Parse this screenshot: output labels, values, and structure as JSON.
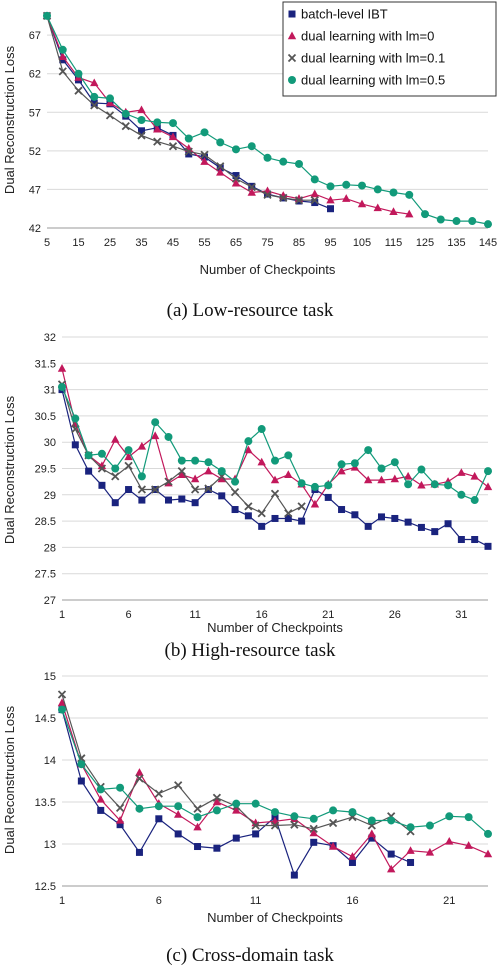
{
  "colors": {
    "batch": "#1a237e",
    "lm0": "#c2185b",
    "lm01": "#555555",
    "lm05": "#129a7a"
  },
  "chart_data": [
    {
      "type": "line",
      "caption": "(a) Low-resource task",
      "xlabel": "Number of Checkpoints",
      "ylabel": "Dual Reconstruction  Loss",
      "ylim": [
        42,
        70
      ],
      "yticks": [
        42,
        47,
        52,
        57,
        62,
        67
      ],
      "xlim": [
        5,
        145
      ],
      "xticks": [
        5,
        15,
        25,
        35,
        45,
        55,
        65,
        75,
        85,
        95,
        105,
        115,
        125,
        135,
        145
      ],
      "grid": true,
      "legend": "top-right",
      "series": [
        {
          "name": "batch-level IBT",
          "marker": "square",
          "colorKey": "batch",
          "x": [
            5,
            10,
            15,
            20,
            25,
            30,
            35,
            40,
            45,
            50,
            55,
            60,
            65,
            70,
            75,
            80,
            85,
            90,
            95
          ],
          "y": [
            69.5,
            63.8,
            61.2,
            58.2,
            58.1,
            56.5,
            54.6,
            55.0,
            54.0,
            51.6,
            51.2,
            49.8,
            48.8,
            47.4,
            46.4,
            45.9,
            45.5,
            45.3,
            44.5
          ]
        },
        {
          "name": "dual learning with lm=0",
          "marker": "triangle",
          "colorKey": "lm0",
          "x": [
            5,
            10,
            15,
            20,
            25,
            30,
            35,
            40,
            45,
            50,
            55,
            60,
            65,
            70,
            75,
            80,
            85,
            90,
            95,
            100,
            105,
            110,
            115,
            120
          ],
          "y": [
            69.5,
            64.2,
            61.5,
            60.8,
            58.2,
            57.0,
            57.3,
            54.8,
            53.8,
            52.3,
            50.6,
            49.2,
            47.8,
            46.6,
            46.8,
            46.2,
            45.8,
            46.4,
            45.6,
            45.8,
            45.1,
            44.6,
            44.1,
            43.8
          ]
        },
        {
          "name": "dual learning with lm=0.1",
          "marker": "x",
          "colorKey": "lm01",
          "x": [
            5,
            10,
            15,
            20,
            25,
            30,
            35,
            40,
            45,
            50,
            55,
            60,
            65,
            70,
            75,
            80,
            85,
            90
          ],
          "y": [
            69.5,
            62.3,
            59.8,
            57.9,
            56.6,
            55.2,
            54.0,
            53.2,
            52.6,
            51.9,
            51.5,
            50.0,
            48.4,
            47.3,
            46.3,
            45.9,
            45.6,
            45.6
          ]
        },
        {
          "name": "dual learning with lm=0.5",
          "marker": "circle",
          "colorKey": "lm05",
          "x": [
            5,
            10,
            15,
            20,
            25,
            30,
            35,
            40,
            45,
            50,
            55,
            60,
            65,
            70,
            75,
            80,
            85,
            90,
            95,
            100,
            105,
            110,
            115,
            120,
            125,
            130,
            135,
            140,
            145
          ],
          "y": [
            69.5,
            65.1,
            62.0,
            59.0,
            58.8,
            56.8,
            56.0,
            55.7,
            55.6,
            53.6,
            54.4,
            53.1,
            52.2,
            52.6,
            51.1,
            50.6,
            50.3,
            48.3,
            47.4,
            47.6,
            47.5,
            47.0,
            46.6,
            46.3,
            43.8,
            43.1,
            42.9,
            42.9,
            42.5
          ]
        }
      ]
    },
    {
      "type": "line",
      "caption": "(b) High-resource task",
      "xlabel": "Number of Checkpoints",
      "ylabel": "Dual Reconstruction  Loss",
      "ylim": [
        27,
        32
      ],
      "yticks": [
        27,
        27.5,
        28,
        28.5,
        29,
        29.5,
        30,
        30.5,
        31,
        31.5,
        32
      ],
      "xlim": [
        1,
        33
      ],
      "xticks": [
        1,
        6,
        11,
        16,
        21,
        26,
        31
      ],
      "grid": true,
      "series": [
        {
          "name": "batch-level IBT",
          "marker": "square",
          "colorKey": "batch",
          "x": [
            1,
            2,
            3,
            4,
            5,
            6,
            7,
            8,
            9,
            10,
            11,
            12,
            13,
            14,
            15,
            16,
            17,
            18,
            19,
            20,
            21,
            22,
            23,
            24,
            25,
            26,
            27,
            28,
            29,
            30,
            31,
            32,
            33
          ],
          "y": [
            31.0,
            29.95,
            29.45,
            29.18,
            28.85,
            29.1,
            28.9,
            29.1,
            28.9,
            28.92,
            28.85,
            29.1,
            28.98,
            28.72,
            28.6,
            28.4,
            28.55,
            28.55,
            28.5,
            29.1,
            28.95,
            28.72,
            28.62,
            28.4,
            28.58,
            28.55,
            28.48,
            28.38,
            28.3,
            28.45,
            28.15,
            28.15,
            28.02
          ]
        },
        {
          "name": "dual learning with lm=0",
          "marker": "triangle",
          "colorKey": "lm0",
          "x": [
            1,
            2,
            3,
            4,
            5,
            6,
            7,
            8,
            9,
            10,
            11,
            12,
            13,
            14,
            15,
            16,
            17,
            18,
            19,
            20,
            21,
            22,
            23,
            24,
            25,
            26,
            27,
            28,
            29,
            30,
            31,
            32,
            33
          ],
          "y": [
            31.4,
            30.35,
            29.75,
            29.55,
            30.05,
            29.72,
            29.92,
            30.12,
            29.22,
            29.38,
            29.3,
            29.45,
            29.3,
            29.3,
            29.85,
            29.62,
            29.28,
            29.38,
            29.2,
            28.82,
            29.2,
            29.45,
            29.52,
            29.28,
            29.28,
            29.3,
            29.35,
            29.18,
            29.2,
            29.25,
            29.42,
            29.35,
            29.15
          ]
        },
        {
          "name": "dual learning with lm=0.1",
          "marker": "x",
          "colorKey": "lm01",
          "x": [
            1,
            2,
            3,
            4,
            5,
            6,
            7,
            8,
            9,
            10,
            11,
            12,
            13,
            14,
            15,
            16,
            17,
            18,
            19
          ],
          "y": [
            31.1,
            30.25,
            29.75,
            29.5,
            29.35,
            29.55,
            29.1,
            29.1,
            29.25,
            29.45,
            29.1,
            29.12,
            29.35,
            29.05,
            28.78,
            28.65,
            29.02,
            28.65,
            28.78
          ]
        },
        {
          "name": "dual learning with lm=0.5",
          "marker": "circle",
          "colorKey": "lm05",
          "x": [
            1,
            2,
            3,
            4,
            5,
            6,
            7,
            8,
            9,
            10,
            11,
            12,
            13,
            14,
            15,
            16,
            17,
            18,
            19,
            20,
            21,
            22,
            23,
            24,
            25,
            26,
            27,
            28,
            29,
            30,
            31,
            32,
            33
          ],
          "y": [
            31.05,
            30.45,
            29.75,
            29.78,
            29.5,
            29.85,
            29.35,
            30.38,
            30.1,
            29.65,
            29.65,
            29.62,
            29.45,
            29.25,
            30.02,
            30.25,
            29.65,
            29.75,
            29.22,
            29.15,
            29.18,
            29.58,
            29.6,
            29.85,
            29.5,
            29.62,
            29.2,
            29.48,
            29.2,
            29.18,
            29.0,
            28.9,
            29.45
          ]
        }
      ]
    },
    {
      "type": "line",
      "caption": "(c) Cross-domain task",
      "xlabel": "Number of Checkpoints",
      "ylabel": "Dual Reconstruction  Loss",
      "ylim": [
        12.5,
        15
      ],
      "yticks": [
        12.5,
        13,
        13.5,
        14,
        14.5,
        15
      ],
      "xlim": [
        1,
        23
      ],
      "xticks": [
        1,
        6,
        11,
        16,
        21
      ],
      "grid": true,
      "series": [
        {
          "name": "batch-level IBT",
          "marker": "square",
          "colorKey": "batch",
          "x": [
            1,
            2,
            3,
            4,
            5,
            6,
            7,
            8,
            9,
            10,
            11,
            12,
            13,
            14,
            15,
            16,
            17,
            18,
            19
          ],
          "y": [
            14.6,
            13.75,
            13.4,
            13.23,
            12.9,
            13.3,
            13.12,
            12.97,
            12.95,
            13.07,
            13.12,
            13.32,
            12.63,
            13.02,
            12.98,
            12.78,
            13.07,
            12.88,
            12.78
          ]
        },
        {
          "name": "dual learning with lm=0",
          "marker": "triangle",
          "colorKey": "lm0",
          "x": [
            1,
            2,
            3,
            4,
            5,
            6,
            7,
            8,
            9,
            10,
            11,
            12,
            13,
            14,
            15,
            16,
            17,
            18,
            19,
            20,
            21,
            22,
            23
          ],
          "y": [
            14.68,
            13.95,
            13.53,
            13.28,
            13.85,
            13.48,
            13.35,
            13.2,
            13.5,
            13.4,
            13.25,
            13.27,
            13.3,
            13.13,
            12.97,
            12.85,
            13.12,
            12.7,
            12.92,
            12.9,
            13.03,
            12.98,
            12.88
          ]
        },
        {
          "name": "dual learning with lm=0.1",
          "marker": "x",
          "colorKey": "lm01",
          "x": [
            1,
            2,
            3,
            4,
            5,
            6,
            7,
            8,
            9,
            10,
            11,
            12,
            13,
            14,
            15,
            16,
            17,
            18,
            19
          ],
          "y": [
            14.78,
            14.02,
            13.68,
            13.43,
            13.78,
            13.6,
            13.7,
            13.42,
            13.55,
            13.45,
            13.22,
            13.22,
            13.23,
            13.18,
            13.25,
            13.32,
            13.22,
            13.33,
            13.15
          ]
        },
        {
          "name": "dual learning with lm=0.5",
          "marker": "circle",
          "colorKey": "lm05",
          "x": [
            1,
            2,
            3,
            4,
            5,
            6,
            7,
            8,
            9,
            10,
            11,
            12,
            13,
            14,
            15,
            16,
            17,
            18,
            19,
            20,
            21,
            22,
            23
          ],
          "y": [
            14.6,
            13.95,
            13.65,
            13.67,
            13.42,
            13.45,
            13.45,
            13.32,
            13.4,
            13.48,
            13.48,
            13.38,
            13.33,
            13.3,
            13.4,
            13.38,
            13.28,
            13.28,
            13.2,
            13.22,
            13.33,
            13.32,
            13.12
          ]
        }
      ]
    }
  ]
}
